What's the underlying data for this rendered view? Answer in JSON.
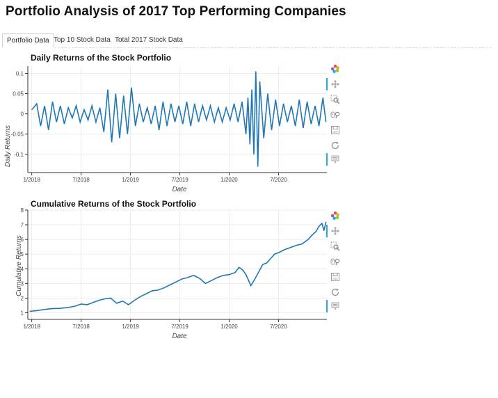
{
  "page": {
    "title": "Portfolio Analysis of 2017 Top Performing Companies"
  },
  "tabs": [
    {
      "label": "Portfolio Data",
      "active": true
    },
    {
      "label": "Top 10 Stock Data",
      "active": false
    },
    {
      "label": "Total 2017 Stock Data",
      "active": false
    }
  ],
  "toolbar_icons": [
    "bokeh-logo-icon",
    "pan-icon",
    "box-zoom-icon",
    "wheel-zoom-icon",
    "save-icon",
    "reset-icon",
    "hover-icon"
  ],
  "colors": {
    "line": "#1f77b4",
    "active_tool": "#26aae1"
  },
  "chart_data": [
    {
      "type": "line",
      "title": "Daily Returns of the Stock Portfolio",
      "xlabel": "Date",
      "ylabel": "Daily Returns",
      "x_range": [
        2017.96,
        2020.99
      ],
      "ylim": [
        -0.145,
        0.118
      ],
      "yticks": [
        -0.1,
        -0.05,
        0,
        0.05,
        0.1
      ],
      "ytick_labels": [
        "-0.1",
        "-0.05",
        "0",
        "0.05",
        "0.1"
      ],
      "xticks": [
        2018.0,
        2018.5,
        2019.0,
        2019.5,
        2020.0,
        2020.5
      ],
      "xtick_labels": [
        "1/2018",
        "7/2018",
        "1/2019",
        "7/2019",
        "1/2020",
        "7/2020"
      ],
      "x": [
        2018.0,
        2018.05,
        2018.09,
        2018.13,
        2018.17,
        2018.21,
        2018.25,
        2018.29,
        2018.33,
        2018.37,
        2018.41,
        2018.45,
        2018.49,
        2018.53,
        2018.57,
        2018.61,
        2018.65,
        2018.69,
        2018.73,
        2018.77,
        2018.81,
        2018.85,
        2018.89,
        2018.93,
        2018.97,
        2019.01,
        2019.05,
        2019.09,
        2019.13,
        2019.17,
        2019.21,
        2019.25,
        2019.29,
        2019.33,
        2019.37,
        2019.41,
        2019.45,
        2019.49,
        2019.53,
        2019.57,
        2019.61,
        2019.65,
        2019.69,
        2019.73,
        2019.77,
        2019.81,
        2019.85,
        2019.89,
        2019.93,
        2019.97,
        2020.01,
        2020.05,
        2020.09,
        2020.13,
        2020.17,
        2020.19,
        2020.21,
        2020.23,
        2020.25,
        2020.27,
        2020.29,
        2020.31,
        2020.35,
        2020.39,
        2020.43,
        2020.47,
        2020.51,
        2020.55,
        2020.59,
        2020.63,
        2020.67,
        2020.71,
        2020.75,
        2020.79,
        2020.83,
        2020.87,
        2020.91,
        2020.95,
        2020.98
      ],
      "values": [
        0.01,
        0.025,
        -0.03,
        0.02,
        -0.04,
        0.03,
        -0.02,
        0.02,
        -0.025,
        0.015,
        -0.01,
        0.02,
        -0.02,
        0.01,
        -0.015,
        0.02,
        -0.02,
        0.015,
        -0.045,
        0.06,
        -0.07,
        0.05,
        -0.06,
        0.045,
        -0.05,
        0.065,
        -0.03,
        0.025,
        -0.02,
        0.015,
        -0.025,
        0.02,
        -0.04,
        0.03,
        -0.03,
        0.025,
        -0.02,
        0.02,
        -0.025,
        0.03,
        -0.03,
        0.025,
        -0.02,
        0.02,
        -0.015,
        0.02,
        -0.02,
        0.015,
        -0.02,
        0.015,
        -0.015,
        0.025,
        -0.02,
        0.03,
        -0.05,
        0.04,
        -0.075,
        0.06,
        -0.1,
        0.105,
        -0.13,
        0.08,
        -0.06,
        0.05,
        -0.04,
        0.035,
        -0.03,
        0.025,
        -0.02,
        0.02,
        -0.03,
        0.035,
        -0.035,
        0.03,
        -0.025,
        0.02,
        -0.03,
        0.04,
        -0.02
      ]
    },
    {
      "type": "line",
      "title": "Cumulative Returns of the Stock Portfolio",
      "xlabel": "Date",
      "ylabel": "Cumulative Returns",
      "x_range": [
        2017.96,
        2020.99
      ],
      "ylim": [
        0.55,
        8.0
      ],
      "yticks": [
        1,
        2,
        3,
        4,
        5,
        6,
        7,
        8
      ],
      "ytick_labels": [
        "1",
        "2",
        "3",
        "4",
        "5",
        "6",
        "7",
        "8"
      ],
      "xticks": [
        2018.0,
        2018.5,
        2019.0,
        2019.5,
        2020.0,
        2020.5
      ],
      "xtick_labels": [
        "1/2018",
        "7/2018",
        "1/2019",
        "7/2019",
        "1/2020",
        "7/2020"
      ],
      "x": [
        2017.98,
        2018.05,
        2018.12,
        2018.2,
        2018.28,
        2018.36,
        2018.44,
        2018.5,
        2018.56,
        2018.62,
        2018.68,
        2018.74,
        2018.8,
        2018.86,
        2018.92,
        2018.98,
        2019.04,
        2019.1,
        2019.16,
        2019.22,
        2019.28,
        2019.34,
        2019.4,
        2019.46,
        2019.52,
        2019.58,
        2019.64,
        2019.7,
        2019.76,
        2019.82,
        2019.88,
        2019.94,
        2020.0,
        2020.06,
        2020.1,
        2020.14,
        2020.17,
        2020.19,
        2020.22,
        2020.26,
        2020.3,
        2020.34,
        2020.38,
        2020.42,
        2020.46,
        2020.5,
        2020.56,
        2020.62,
        2020.68,
        2020.74,
        2020.8,
        2020.84,
        2020.88,
        2020.91,
        2020.94,
        2020.96,
        2020.98
      ],
      "values": [
        1.1,
        1.15,
        1.22,
        1.28,
        1.3,
        1.35,
        1.45,
        1.6,
        1.55,
        1.7,
        1.85,
        1.95,
        2.0,
        1.65,
        1.8,
        1.55,
        1.85,
        2.1,
        2.3,
        2.5,
        2.55,
        2.7,
        2.9,
        3.1,
        3.3,
        3.4,
        3.55,
        3.35,
        3.0,
        3.2,
        3.4,
        3.55,
        3.6,
        3.75,
        4.1,
        3.9,
        3.6,
        3.3,
        2.85,
        3.3,
        3.8,
        4.3,
        4.4,
        4.7,
        5.0,
        5.1,
        5.3,
        5.45,
        5.6,
        5.7,
        6.0,
        6.3,
        6.55,
        6.9,
        7.1,
        6.6,
        7.2
      ]
    }
  ]
}
